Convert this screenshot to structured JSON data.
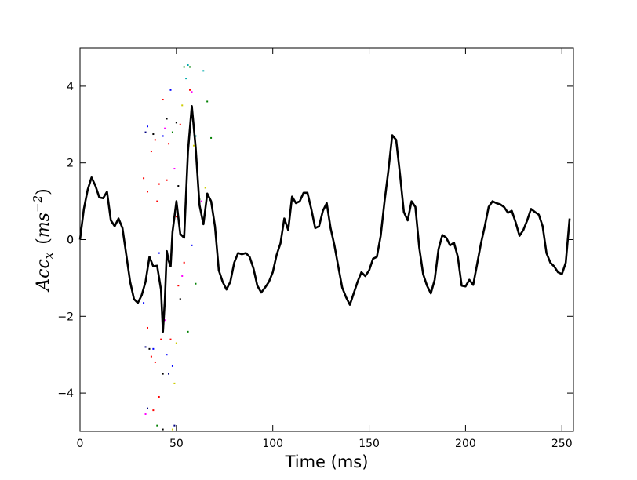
{
  "chart_data": {
    "type": "line",
    "xlabel": "Time (ms)",
    "ylabel": {
      "base": "Acc",
      "sub": "x",
      "unit_open": "(",
      "unit": "ms",
      "exponent": "−2",
      "unit_close": ")"
    },
    "xlim": [
      0,
      256
    ],
    "ylim": [
      -5,
      5
    ],
    "xticks": [
      0,
      50,
      100,
      150,
      200,
      250
    ],
    "yticks": [
      -4,
      -2,
      0,
      2,
      4
    ],
    "grid": false,
    "legend": "none",
    "series": [
      {
        "color": "#000000",
        "x": [
          0,
          2,
          4,
          6,
          8,
          10,
          12,
          14,
          16,
          18,
          20,
          22,
          24,
          26,
          28,
          30,
          32,
          34,
          36,
          38,
          40,
          42,
          43,
          44,
          45,
          46,
          47,
          48,
          50,
          52,
          54,
          56,
          58,
          60,
          62,
          64,
          66,
          68,
          70,
          72,
          74,
          76,
          78,
          80,
          82,
          84,
          86,
          88,
          90,
          92,
          94,
          96,
          98,
          100,
          102,
          104,
          106,
          108,
          110,
          112,
          114,
          116,
          118,
          120,
          122,
          124,
          126,
          128,
          130,
          132,
          134,
          136,
          138,
          140,
          142,
          144,
          146,
          148,
          150,
          152,
          154,
          156,
          158,
          160,
          162,
          164,
          166,
          168,
          170,
          172,
          174,
          176,
          178,
          180,
          182,
          184,
          186,
          188,
          190,
          192,
          194,
          196,
          198,
          200,
          202,
          204,
          206,
          208,
          210,
          212,
          214,
          216,
          218,
          220,
          222,
          224,
          226,
          228,
          230,
          232,
          234,
          236,
          238,
          240,
          242,
          244,
          246,
          248,
          250,
          252,
          254
        ],
        "y": [
          0.0,
          0.8,
          1.3,
          1.62,
          1.4,
          1.1,
          1.08,
          1.25,
          0.5,
          0.35,
          0.55,
          0.3,
          -0.4,
          -1.1,
          -1.55,
          -1.65,
          -1.45,
          -1.1,
          -0.45,
          -0.7,
          -0.68,
          -1.3,
          -2.4,
          -1.6,
          -0.3,
          -0.55,
          -0.7,
          0.2,
          1.0,
          0.15,
          0.05,
          2.3,
          3.48,
          2.4,
          0.9,
          0.4,
          1.2,
          1.0,
          0.35,
          -0.8,
          -1.1,
          -1.3,
          -1.1,
          -0.6,
          -0.35,
          -0.38,
          -0.35,
          -0.45,
          -0.75,
          -1.2,
          -1.38,
          -1.25,
          -1.1,
          -0.85,
          -0.4,
          -0.1,
          0.55,
          0.25,
          1.12,
          0.95,
          1.0,
          1.22,
          1.22,
          0.8,
          0.3,
          0.35,
          0.75,
          0.95,
          0.3,
          -0.15,
          -0.7,
          -1.25,
          -1.5,
          -1.7,
          -1.4,
          -1.1,
          -0.85,
          -0.95,
          -0.8,
          -0.5,
          -0.45,
          0.1,
          1.0,
          1.8,
          2.72,
          2.6,
          1.7,
          0.72,
          0.5,
          1.0,
          0.85,
          -0.2,
          -0.9,
          -1.2,
          -1.4,
          -1.05,
          -0.25,
          0.12,
          0.05,
          -0.15,
          -0.08,
          -0.45,
          -1.2,
          -1.22,
          -1.05,
          -1.18,
          -0.65,
          -0.1,
          0.35,
          0.85,
          1.0,
          0.95,
          0.92,
          0.85,
          0.7,
          0.75,
          0.45,
          0.1,
          0.25,
          0.5,
          0.8,
          0.72,
          0.65,
          0.35,
          -0.35,
          -0.6,
          -0.7,
          -0.85,
          -0.9,
          -0.6,
          0.55
        ]
      }
    ],
    "scatter_points": [
      {
        "x": 33,
        "y": 1.6,
        "color": "#ff0000"
      },
      {
        "x": 34,
        "y": 2.8,
        "color": "#000080"
      },
      {
        "x": 35,
        "y": 2.95,
        "color": "#0000ff"
      },
      {
        "x": 35,
        "y": 1.25,
        "color": "#ff0000"
      },
      {
        "x": 37,
        "y": 2.3,
        "color": "#ff0000"
      },
      {
        "x": 38,
        "y": 2.75,
        "color": "#000000"
      },
      {
        "x": 39,
        "y": 2.6,
        "color": "#ff0000"
      },
      {
        "x": 40,
        "y": 1.0,
        "color": "#ff0000"
      },
      {
        "x": 41,
        "y": 1.45,
        "color": "#ff0000"
      },
      {
        "x": 43,
        "y": 3.65,
        "color": "#ff0000"
      },
      {
        "x": 43,
        "y": 2.7,
        "color": "#0000ff"
      },
      {
        "x": 44,
        "y": 2.9,
        "color": "#ff00ff"
      },
      {
        "x": 45,
        "y": 3.15,
        "color": "#000000"
      },
      {
        "x": 45,
        "y": 1.55,
        "color": "#ff0000"
      },
      {
        "x": 46,
        "y": 2.5,
        "color": "#ff0000"
      },
      {
        "x": 47,
        "y": 3.9,
        "color": "#0000ff"
      },
      {
        "x": 48,
        "y": 2.8,
        "color": "#008000"
      },
      {
        "x": 49,
        "y": 1.85,
        "color": "#ff00ff"
      },
      {
        "x": 50,
        "y": 3.05,
        "color": "#000000"
      },
      {
        "x": 50,
        "y": 0.6,
        "color": "#ff0000"
      },
      {
        "x": 51,
        "y": 1.4,
        "color": "#000000"
      },
      {
        "x": 52,
        "y": 3.0,
        "color": "#ff0000"
      },
      {
        "x": 53,
        "y": 3.5,
        "color": "#cccc00"
      },
      {
        "x": 54,
        "y": 4.5,
        "color": "#008000"
      },
      {
        "x": 55,
        "y": 4.2,
        "color": "#00aaaa"
      },
      {
        "x": 56,
        "y": 4.55,
        "color": "#00aaaa"
      },
      {
        "x": 57,
        "y": 4.5,
        "color": "#008000"
      },
      {
        "x": 57,
        "y": 3.9,
        "color": "#ff0000"
      },
      {
        "x": 58,
        "y": 3.85,
        "color": "#ff00ff"
      },
      {
        "x": 59,
        "y": 2.45,
        "color": "#cccc00"
      },
      {
        "x": 60,
        "y": 2.7,
        "color": "#00aaaa"
      },
      {
        "x": 62,
        "y": 1.05,
        "color": "#008000"
      },
      {
        "x": 63,
        "y": 1.0,
        "color": "#ff00ff"
      },
      {
        "x": 64,
        "y": 4.4,
        "color": "#00aaaa"
      },
      {
        "x": 65,
        "y": 1.35,
        "color": "#cccc00"
      },
      {
        "x": 66,
        "y": 3.6,
        "color": "#008000"
      },
      {
        "x": 68,
        "y": 2.65,
        "color": "#008000"
      },
      {
        "x": 33,
        "y": -1.65,
        "color": "#0000ff"
      },
      {
        "x": 34,
        "y": -2.8,
        "color": "#000080"
      },
      {
        "x": 35,
        "y": -2.3,
        "color": "#ff0000"
      },
      {
        "x": 36,
        "y": -2.85,
        "color": "#000000"
      },
      {
        "x": 37,
        "y": -3.05,
        "color": "#ff0000"
      },
      {
        "x": 38,
        "y": -2.85,
        "color": "#0000ff"
      },
      {
        "x": 39,
        "y": -3.2,
        "color": "#ff0000"
      },
      {
        "x": 40,
        "y": -0.7,
        "color": "#ff0000"
      },
      {
        "x": 41,
        "y": -0.35,
        "color": "#0000ff"
      },
      {
        "x": 42,
        "y": -2.6,
        "color": "#ff0000"
      },
      {
        "x": 43,
        "y": -3.5,
        "color": "#000000"
      },
      {
        "x": 44,
        "y": -2.1,
        "color": "#ff00ff"
      },
      {
        "x": 45,
        "y": -3.0,
        "color": "#0000ff"
      },
      {
        "x": 46,
        "y": -3.5,
        "color": "#000080"
      },
      {
        "x": 47,
        "y": -2.6,
        "color": "#ff0000"
      },
      {
        "x": 48,
        "y": -3.3,
        "color": "#0000ff"
      },
      {
        "x": 49,
        "y": -3.75,
        "color": "#cccc00"
      },
      {
        "x": 50,
        "y": -2.7,
        "color": "#cccc00"
      },
      {
        "x": 51,
        "y": -1.2,
        "color": "#ff0000"
      },
      {
        "x": 52,
        "y": -1.55,
        "color": "#000000"
      },
      {
        "x": 53,
        "y": -0.95,
        "color": "#ff00ff"
      },
      {
        "x": 54,
        "y": -0.6,
        "color": "#ff0000"
      },
      {
        "x": 56,
        "y": -2.4,
        "color": "#008000"
      },
      {
        "x": 58,
        "y": -0.15,
        "color": "#0000ff"
      },
      {
        "x": 60,
        "y": -1.15,
        "color": "#008000"
      },
      {
        "x": 35,
        "y": -4.4,
        "color": "#000080"
      },
      {
        "x": 34,
        "y": -4.55,
        "color": "#ff00ff"
      },
      {
        "x": 38,
        "y": -4.45,
        "color": "#ff0000"
      },
      {
        "x": 41,
        "y": -4.1,
        "color": "#ff0000"
      },
      {
        "x": 40,
        "y": -4.85,
        "color": "#008000"
      },
      {
        "x": 43,
        "y": -4.95,
        "color": "#000000"
      },
      {
        "x": 48,
        "y": -4.95,
        "color": "#cccc00"
      },
      {
        "x": 49,
        "y": -4.85,
        "color": "#000080"
      }
    ]
  }
}
